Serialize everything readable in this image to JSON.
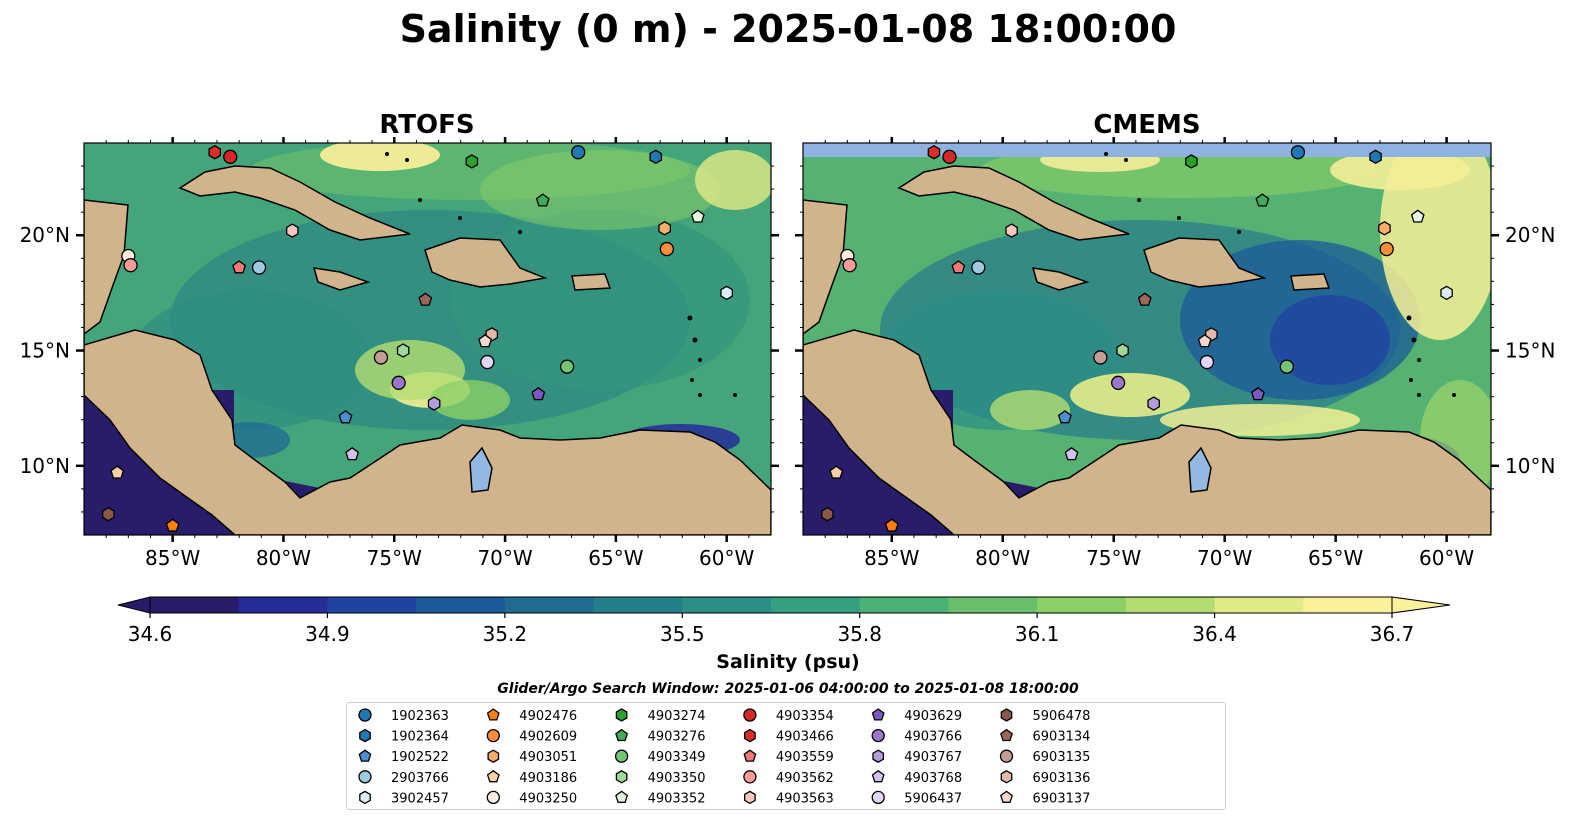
{
  "figure": {
    "title": "Salinity (0 m) - 2025-01-08 18:00:00",
    "search_window": "Glider/Argo Search Window: 2025-01-06 04:00:00 to 2025-01-08 18:00:00"
  },
  "panels": [
    {
      "id": "rtofs",
      "title": "RTOFS"
    },
    {
      "id": "cmems",
      "title": "CMEMS"
    }
  ],
  "map_extent": {
    "lon_min": -89,
    "lon_max": -58,
    "lat_min": 7,
    "lat_max": 24
  },
  "axes": {
    "lon_ticks": [
      {
        "value": -85,
        "label": "85°W"
      },
      {
        "value": -80,
        "label": "80°W"
      },
      {
        "value": -75,
        "label": "75°W"
      },
      {
        "value": -70,
        "label": "70°W"
      },
      {
        "value": -65,
        "label": "65°W"
      },
      {
        "value": -60,
        "label": "60°W"
      }
    ],
    "lat_ticks": [
      {
        "value": 10,
        "label": "10°N"
      },
      {
        "value": 15,
        "label": "15°N"
      },
      {
        "value": 20,
        "label": "20°N"
      }
    ]
  },
  "colorbar": {
    "label": "Salinity (psu)",
    "vmin": 34.6,
    "vmax": 36.7,
    "ticks": [
      "34.6",
      "34.9",
      "35.2",
      "35.5",
      "35.8",
      "36.1",
      "36.4",
      "36.7"
    ],
    "colors": [
      "#271c6a",
      "#262c9a",
      "#1f43a0",
      "#1b5a99",
      "#1f6e92",
      "#247f8b",
      "#2b8f86",
      "#35a07f",
      "#4bb076",
      "#69c06c",
      "#8bcf67",
      "#b3dd72",
      "#e0ea86",
      "#fbf19b"
    ]
  },
  "map_colors": {
    "land": "#d2b48c",
    "lake": "#94b8e2",
    "ocean_base": "#41a07a",
    "deep_fresh": "#281c6b",
    "gap": "#8fb3e0"
  },
  "floats": [
    {
      "id": "1902363",
      "marker": "circle",
      "color": "#1f77b4",
      "lon": -66.7,
      "lat": 23.6
    },
    {
      "id": "1902364",
      "marker": "hexagon",
      "color": "#1f77b4",
      "lon": -63.2,
      "lat": 23.4
    },
    {
      "id": "1902522",
      "marker": "pentagon",
      "color": "#4a8fd1",
      "lon": -77.2,
      "lat": 12.1
    },
    {
      "id": "2903766",
      "marker": "circle",
      "color": "#9ecae1",
      "lon": -81.1,
      "lat": 18.6
    },
    {
      "id": "3902457",
      "marker": "hexagon",
      "color": "#dbeef7",
      "lon": -60.0,
      "lat": 17.5
    },
    {
      "id": "4902476",
      "marker": "pentagon",
      "color": "#ff7f0e",
      "lon": -85.0,
      "lat": 7.4
    },
    {
      "id": "4902609",
      "marker": "circle",
      "color": "#fd8d3c",
      "lon": -62.7,
      "lat": 19.4
    },
    {
      "id": "4903051",
      "marker": "hexagon",
      "color": "#fdae6b",
      "lon": -62.8,
      "lat": 20.3
    },
    {
      "id": "4903186",
      "marker": "pentagon",
      "color": "#fdd0a2",
      "lon": -87.5,
      "lat": 9.7
    },
    {
      "id": "4903250",
      "marker": "circle",
      "color": "#feedde",
      "lon": -87.0,
      "lat": 19.1
    },
    {
      "id": "4903274",
      "marker": "hexagon",
      "color": "#2ca02c",
      "lon": -71.5,
      "lat": 23.2
    },
    {
      "id": "4903276",
      "marker": "pentagon",
      "color": "#41ab5d",
      "lon": -68.3,
      "lat": 21.5
    },
    {
      "id": "4903349",
      "marker": "circle",
      "color": "#74c476",
      "lon": -67.2,
      "lat": 14.3
    },
    {
      "id": "4903350",
      "marker": "hexagon",
      "color": "#a1d99b",
      "lon": -74.6,
      "lat": 15.0
    },
    {
      "id": "4903352",
      "marker": "pentagon",
      "color": "#e5f5e0",
      "lon": -61.3,
      "lat": 20.8
    },
    {
      "id": "4903354",
      "marker": "circle",
      "color": "#d62728",
      "lon": -82.4,
      "lat": 23.4
    },
    {
      "id": "4903466",
      "marker": "hexagon",
      "color": "#de2d26",
      "lon": -83.1,
      "lat": 23.6
    },
    {
      "id": "4903559",
      "marker": "pentagon",
      "color": "#f07878",
      "lon": -82.0,
      "lat": 18.6
    },
    {
      "id": "4903562",
      "marker": "circle",
      "color": "#fc9c98",
      "lon": -86.9,
      "lat": 18.7
    },
    {
      "id": "4903563",
      "marker": "hexagon",
      "color": "#fcc5c0",
      "lon": -79.6,
      "lat": 20.2
    },
    {
      "id": "4903629",
      "marker": "pentagon",
      "color": "#7e57c2",
      "lon": -68.5,
      "lat": 13.1
    },
    {
      "id": "4903766",
      "marker": "circle",
      "color": "#9a77c9",
      "lon": -74.8,
      "lat": 13.6
    },
    {
      "id": "4903767",
      "marker": "hexagon",
      "color": "#b39ddb",
      "lon": -73.2,
      "lat": 12.7
    },
    {
      "id": "4903768",
      "marker": "pentagon",
      "color": "#d4c2ee",
      "lon": -76.9,
      "lat": 10.5
    },
    {
      "id": "5906437",
      "marker": "circle",
      "color": "#e4d6f8",
      "lon": -70.8,
      "lat": 14.5
    },
    {
      "id": "5906478",
      "marker": "hexagon",
      "color": "#8c564b",
      "lon": -87.9,
      "lat": 7.9
    },
    {
      "id": "6903134",
      "marker": "pentagon",
      "color": "#a0665a",
      "lon": -73.6,
      "lat": 17.2
    },
    {
      "id": "6903135",
      "marker": "circle",
      "color": "#c49c94",
      "lon": -75.6,
      "lat": 14.7
    },
    {
      "id": "6903136",
      "marker": "hexagon",
      "color": "#e6b8aa",
      "lon": -70.6,
      "lat": 15.7
    },
    {
      "id": "6903137",
      "marker": "pentagon",
      "color": "#f7d8cc",
      "lon": -70.9,
      "lat": 15.4
    }
  ]
}
